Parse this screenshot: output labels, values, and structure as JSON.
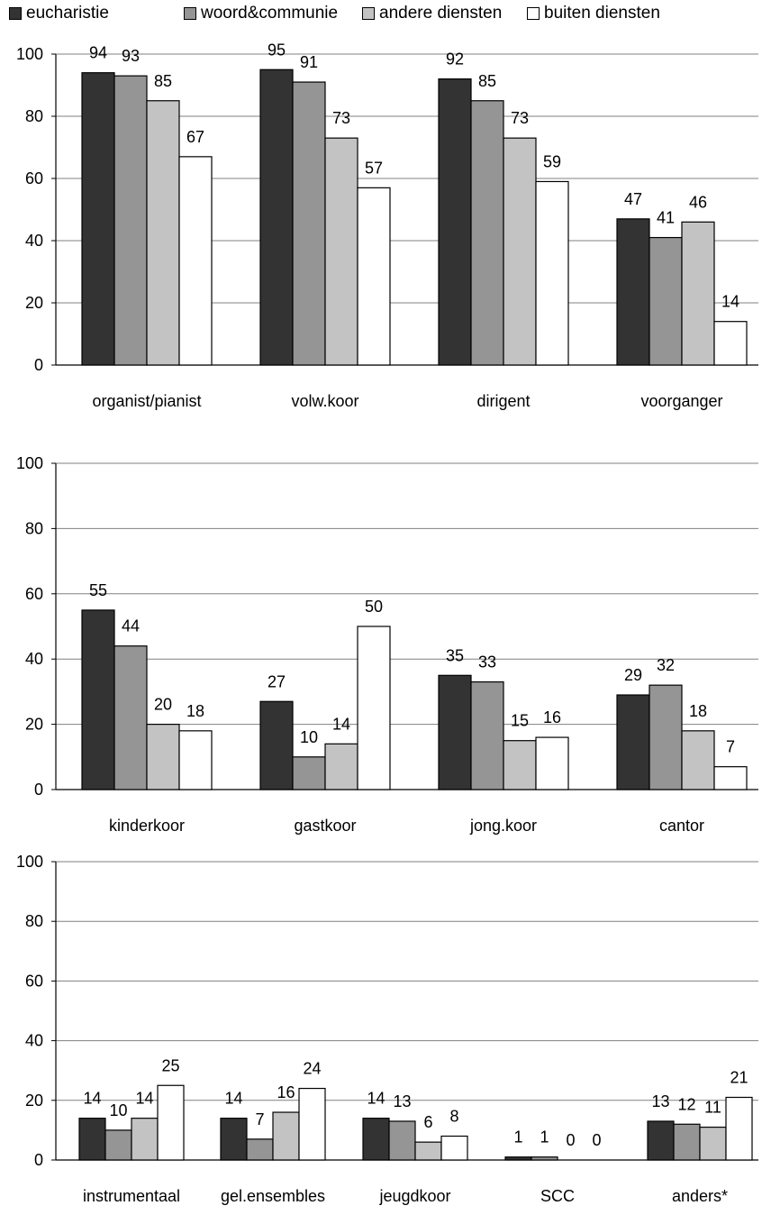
{
  "colors": {
    "eucharistie": "#333333",
    "woord_communie": "#959595",
    "andere_diensten": "#c3c3c3",
    "buiten_diensten": "#ffffff",
    "gridline": "#808080",
    "axis": "#000000"
  },
  "legend": [
    {
      "label": "eucharistie",
      "color": "#333333"
    },
    {
      "label": "woord&communie",
      "color": "#959595"
    },
    {
      "label": "andere diensten",
      "color": "#c3c3c3"
    },
    {
      "label": "buiten diensten",
      "color": "#ffffff"
    }
  ],
  "chart_data": [
    {
      "type": "bar",
      "categories": [
        "organist/pianist",
        "volw.koor",
        "dirigent",
        "voorganger"
      ],
      "series": [
        {
          "name": "eucharistie",
          "values": [
            94,
            95,
            92,
            47
          ]
        },
        {
          "name": "woord&communie",
          "values": [
            93,
            91,
            85,
            41
          ]
        },
        {
          "name": "andere diensten",
          "values": [
            85,
            73,
            73,
            46
          ]
        },
        {
          "name": "buiten diensten",
          "values": [
            67,
            57,
            59,
            14
          ]
        }
      ],
      "yticks": [
        "0",
        "20",
        "40",
        "60",
        "80",
        "100"
      ],
      "ylim": [
        0,
        100
      ],
      "grid": true,
      "legend_position": "top"
    },
    {
      "type": "bar",
      "categories": [
        "kinderkoor",
        "gastkoor",
        "jong.koor",
        "cantor"
      ],
      "series": [
        {
          "name": "eucharistie",
          "values": [
            55,
            27,
            35,
            29
          ]
        },
        {
          "name": "woord&communie",
          "values": [
            44,
            10,
            33,
            32
          ]
        },
        {
          "name": "andere diensten",
          "values": [
            20,
            14,
            15,
            18
          ]
        },
        {
          "name": "buiten diensten",
          "values": [
            18,
            50,
            16,
            7
          ]
        }
      ],
      "yticks": [
        "0",
        "20",
        "40",
        "60",
        "80",
        "100"
      ],
      "ylim": [
        0,
        100
      ],
      "grid": true
    },
    {
      "type": "bar",
      "categories": [
        "instrumentaal",
        "gel.ensembles",
        "jeugdkoor",
        "SCC",
        "anders*"
      ],
      "series": [
        {
          "name": "eucharistie",
          "values": [
            14,
            14,
            14,
            1,
            13
          ]
        },
        {
          "name": "woord&communie",
          "values": [
            10,
            7,
            13,
            1,
            12
          ]
        },
        {
          "name": "andere diensten",
          "values": [
            14,
            16,
            6,
            0,
            11
          ]
        },
        {
          "name": "buiten diensten",
          "values": [
            25,
            24,
            8,
            0,
            21
          ]
        }
      ],
      "yticks": [
        "0",
        "20",
        "40",
        "60",
        "80",
        "100"
      ],
      "ylim": [
        0,
        100
      ],
      "grid": true
    }
  ]
}
